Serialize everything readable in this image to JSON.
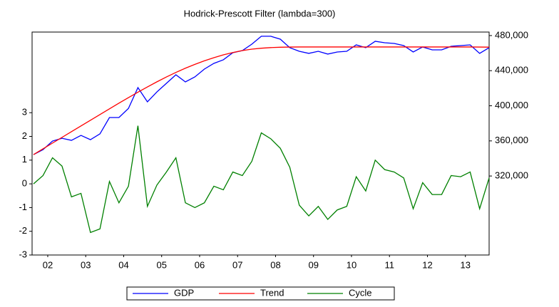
{
  "chart_data": {
    "type": "line",
    "title": "Hodrick-Prescott Filter (lambda=300)",
    "x": [
      2002,
      2002.25,
      2002.5,
      2002.75,
      2003,
      2003.25,
      2003.5,
      2003.75,
      2004,
      2004.25,
      2004.5,
      2004.75,
      2005,
      2005.25,
      2005.5,
      2005.75,
      2006,
      2006.25,
      2006.5,
      2006.75,
      2007,
      2007.25,
      2007.5,
      2007.75,
      2008,
      2008.25,
      2008.5,
      2008.75,
      2009,
      2009.25,
      2009.5,
      2009.75,
      2010,
      2010.25,
      2010.5,
      2010.75,
      2011,
      2011.25,
      2011.5,
      2011.75,
      2012,
      2012.25,
      2012.5,
      2012.75,
      2013,
      2013.25,
      2013.5,
      2013.75,
      2014
    ],
    "xlim": [
      2002,
      2014
    ],
    "xticks": [
      {
        "value": 2002.375,
        "label": "02"
      },
      {
        "value": 2003.375,
        "label": "03"
      },
      {
        "value": 2004.375,
        "label": "04"
      },
      {
        "value": 2005.375,
        "label": "05"
      },
      {
        "value": 2006.375,
        "label": "06"
      },
      {
        "value": 2007.375,
        "label": "07"
      },
      {
        "value": 2008.375,
        "label": "08"
      },
      {
        "value": 2009.375,
        "label": "09"
      },
      {
        "value": 2010.375,
        "label": "10"
      },
      {
        "value": 2011.375,
        "label": "11"
      },
      {
        "value": 2012.375,
        "label": "12"
      },
      {
        "value": 2013.375,
        "label": "13"
      }
    ],
    "ylim": [
      -3,
      6.4
    ],
    "yticks": [
      -3,
      -2,
      -1,
      0,
      1,
      2,
      3
    ],
    "y2lim": [
      230000,
      484000
    ],
    "y2ticks": [
      {
        "value": 320000,
        "label": "320,000"
      },
      {
        "value": 360000,
        "label": "360,000"
      },
      {
        "value": 400000,
        "label": "400,000"
      },
      {
        "value": 440000,
        "label": "440,000"
      },
      {
        "value": 480000,
        "label": "480,000"
      }
    ],
    "series": [
      {
        "name": "GDP",
        "color": "#0000ff",
        "axis": "y2",
        "values": [
          344400,
          350000,
          359800,
          363000,
          360600,
          366300,
          361400,
          368000,
          386600,
          386600,
          397000,
          420700,
          404500,
          415800,
          425600,
          435300,
          427200,
          432900,
          441800,
          448300,
          452400,
          460500,
          462900,
          470200,
          479200,
          479200,
          475900,
          466200,
          462100,
          459700,
          462100,
          458900,
          461300,
          462100,
          469400,
          466200,
          473500,
          471800,
          471000,
          468600,
          461300,
          467000,
          463700,
          463700,
          467800,
          468600,
          469400,
          459700,
          466200
        ]
      },
      {
        "name": "Trend",
        "color": "#ff0000",
        "axis": "y2",
        "values": [
          344400,
          351000,
          357500,
          364000,
          370500,
          377000,
          383500,
          390000,
          396500,
          403000,
          409300,
          415500,
          421500,
          427300,
          432800,
          438000,
          442800,
          447200,
          451200,
          454800,
          458000,
          460700,
          462900,
          464500,
          465600,
          466300,
          466700,
          466900,
          467000,
          467000,
          467000,
          467000,
          467000,
          467000,
          467000,
          467000,
          467000,
          467000,
          467000,
          467000,
          467000,
          467000,
          467000,
          467000,
          467000,
          467000,
          467000,
          466900,
          466800
        ]
      },
      {
        "name": "Cycle",
        "color": "#008000",
        "values": [
          0.0,
          0.35,
          1.1,
          0.75,
          -0.55,
          -0.4,
          -2.05,
          -1.9,
          0.1,
          -0.8,
          -0.1,
          2.45,
          -0.95,
          -0.05,
          0.5,
          1.1,
          -0.8,
          -1.0,
          -0.8,
          -0.1,
          -0.25,
          0.5,
          0.35,
          0.95,
          2.15,
          1.9,
          1.5,
          0.7,
          -0.9,
          -1.35,
          -0.95,
          -1.5,
          -1.1,
          -0.95,
          0.3,
          -0.3,
          1.0,
          0.6,
          0.5,
          0.25,
          -1.05,
          0.05,
          -0.45,
          -0.45,
          0.35,
          0.3,
          0.5,
          -1.05,
          0.25
        ]
      }
    ],
    "legend": "bottom"
  }
}
